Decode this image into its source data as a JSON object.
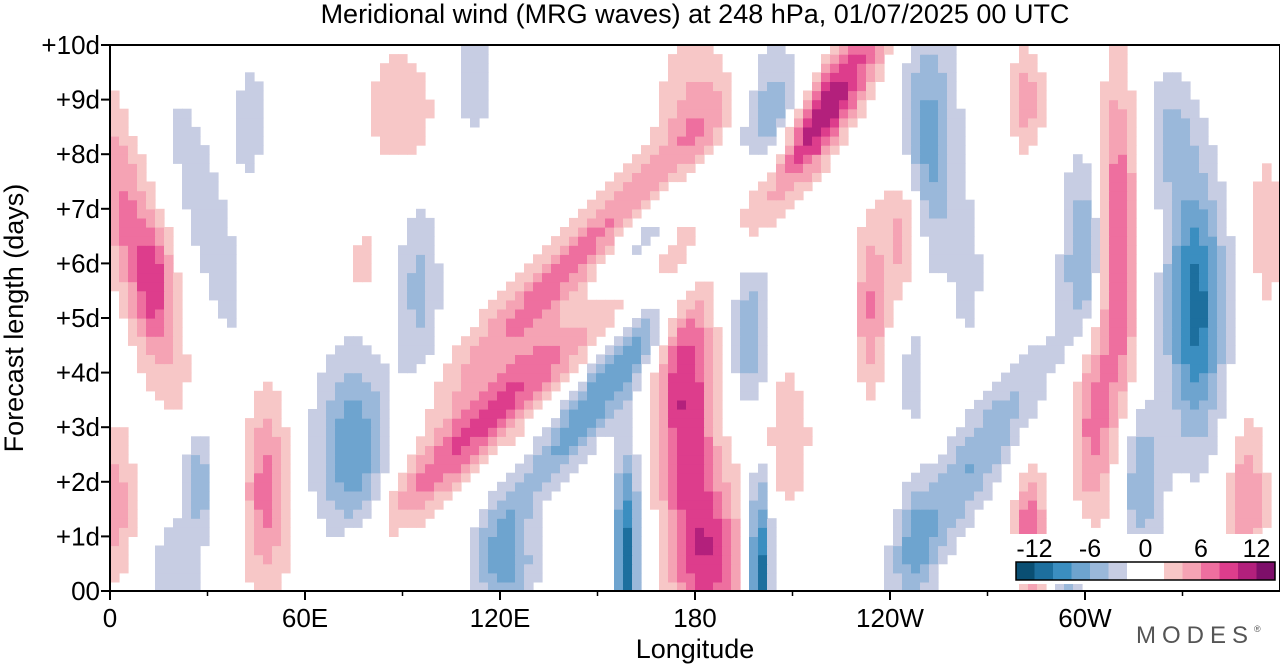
{
  "chart_data": {
    "type": "heatmap",
    "title": "Meridional wind (MRG waves) at  248 hPa,  01/07/2025  00 UTC",
    "xlabel": "Longitude",
    "ylabel": "Forecast length (days)",
    "x_ticks": [
      "0",
      "60E",
      "120E",
      "180",
      "120W",
      "60W"
    ],
    "x_tick_values": [
      0,
      60,
      120,
      180,
      240,
      300
    ],
    "x_minor_ticks": [
      30,
      90,
      150,
      210,
      270,
      330
    ],
    "xlim": [
      0,
      360
    ],
    "y_ticks": [
      "00",
      "+1d",
      "+2d",
      "+3d",
      "+4d",
      "+5d",
      "+6d",
      "+7d",
      "+8d",
      "+9d",
      "+10d"
    ],
    "y_tick_values": [
      0,
      1,
      2,
      3,
      4,
      5,
      6,
      7,
      8,
      9,
      10
    ],
    "ylim": [
      0,
      10
    ],
    "colorbar": {
      "labels": [
        "-12",
        "-6",
        "0",
        "6",
        "12"
      ],
      "label_values": [
        -12,
        -6,
        0,
        6,
        12
      ],
      "levels": [
        -14,
        -12,
        -10,
        -8,
        -6,
        -4,
        -2,
        2,
        4,
        6,
        8,
        10,
        12,
        14
      ],
      "colors": [
        "#0a4f73",
        "#1d6f9e",
        "#3b8ec0",
        "#6ea4cf",
        "#9ab8da",
        "#c7cde3",
        "#ffffff",
        "#f7c7c7",
        "#f5a3b4",
        "#ee6f9f",
        "#dd3d8c",
        "#b3207c",
        "#7e0f6a"
      ]
    },
    "blobs": [
      {
        "lon": 8,
        "day": 6.3,
        "rlon": 9,
        "rday": 2.8,
        "amp": 7,
        "tilt": -4
      },
      {
        "lon": 14,
        "day": 5.7,
        "rlon": 5,
        "rday": 0.9,
        "amp": 4
      },
      {
        "lon": 2,
        "day": 1.6,
        "rlon": 6,
        "rday": 1.5,
        "amp": 5
      },
      {
        "lon": 30,
        "day": 6.8,
        "rlon": 8,
        "rday": 2.8,
        "amp": -3.5,
        "tilt": -4
      },
      {
        "lon": 27,
        "day": 2.0,
        "rlon": 5,
        "rday": 1.0,
        "amp": -6
      },
      {
        "lon": 20,
        "day": 0.3,
        "rlon": 8,
        "rday": 1.0,
        "amp": -4
      },
      {
        "lon": 48,
        "day": 1.9,
        "rlon": 7,
        "rday": 1.9,
        "amp": 7
      },
      {
        "lon": 43,
        "day": 8.6,
        "rlon": 6,
        "rday": 1.5,
        "amp": -3
      },
      {
        "lon": 75,
        "day": 2.5,
        "rlon": 12,
        "rday": 1.8,
        "amp": -8
      },
      {
        "lon": 95,
        "day": 5.5,
        "rlon": 7,
        "rday": 1.8,
        "amp": -4.5
      },
      {
        "lon": 90,
        "day": 8.8,
        "rlon": 12,
        "rday": 1.2,
        "amp": 4
      },
      {
        "lon": 78,
        "day": 6.0,
        "rlon": 6,
        "rday": 0.7,
        "amp": 3
      },
      {
        "lon": 112,
        "day": 9.3,
        "rlon": 9,
        "rday": 1.3,
        "amp": -3
      },
      {
        "lon": 120,
        "day": 3.4,
        "rlon": 12,
        "rday": 2.6,
        "amp": 9,
        "tilt": 16
      },
      {
        "lon": 142,
        "day": 6.0,
        "rlon": 12,
        "rday": 2.6,
        "amp": 7,
        "tilt": 16
      },
      {
        "lon": 122,
        "day": 0.5,
        "rlon": 9,
        "rday": 1.1,
        "amp": -7
      },
      {
        "lon": 152,
        "day": 3.7,
        "rlon": 9,
        "rday": 2.2,
        "amp": -8,
        "tilt": 12
      },
      {
        "lon": 163,
        "day": 6.4,
        "rlon": 9,
        "rday": 1.8,
        "amp": -6,
        "tilt": 14
      },
      {
        "lon": 159,
        "day": 0.6,
        "rlon": 4,
        "rday": 2.0,
        "amp": -11
      },
      {
        "lon": 177,
        "day": 3.6,
        "rlon": 9,
        "rday": 2.3,
        "amp": 10
      },
      {
        "lon": 184,
        "day": 0.6,
        "rlon": 11,
        "rday": 1.6,
        "amp": 9
      },
      {
        "lon": 180,
        "day": 8.9,
        "rlon": 12,
        "rday": 1.5,
        "amp": 4
      },
      {
        "lon": 204,
        "day": 8.6,
        "rlon": 9,
        "rday": 1.6,
        "amp": -6
      },
      {
        "lon": 218,
        "day": 8.6,
        "rlon": 9,
        "rday": 1.9,
        "amp": 12,
        "tilt": 10
      },
      {
        "lon": 200,
        "day": 0.4,
        "rlon": 3.5,
        "rday": 1.8,
        "amp": -12
      },
      {
        "lon": 197,
        "day": 4.7,
        "rlon": 6,
        "rday": 1.3,
        "amp": -6
      },
      {
        "lon": 208,
        "day": 2.8,
        "rlon": 8,
        "rday": 1.4,
        "amp": 4
      },
      {
        "lon": 234,
        "day": 5.2,
        "rlon": 5,
        "rday": 1.6,
        "amp": 6
      },
      {
        "lon": 244,
        "day": 6.6,
        "rlon": 6,
        "rday": 1.3,
        "amp": 6
      },
      {
        "lon": 252,
        "day": 8.2,
        "rlon": 9,
        "rday": 2.2,
        "amp": -7
      },
      {
        "lon": 264,
        "day": 5.8,
        "rlon": 5,
        "rday": 1.4,
        "amp": -3
      },
      {
        "lon": 247,
        "day": 3.9,
        "rlon": 5,
        "rday": 1.2,
        "amp": -3
      },
      {
        "lon": 264,
        "day": 2.2,
        "rlon": 11,
        "rday": 2.2,
        "amp": -6,
        "tilt": 10
      },
      {
        "lon": 248,
        "day": 0.8,
        "rlon": 6,
        "rday": 1.2,
        "amp": -4
      },
      {
        "lon": 283,
        "day": 1.0,
        "rlon": 5,
        "rday": 1.2,
        "amp": 8
      },
      {
        "lon": 282,
        "day": 9.0,
        "rlon": 6,
        "rday": 1.0,
        "amp": 5
      },
      {
        "lon": 300,
        "day": 6.0,
        "rlon": 7,
        "rday": 1.9,
        "amp": -7
      },
      {
        "lon": 310,
        "day": 6.2,
        "rlon": 6,
        "rday": 3.2,
        "amp": 9
      },
      {
        "lon": 302,
        "day": 3.3,
        "rlon": 6,
        "rday": 2.0,
        "amp": 7
      },
      {
        "lon": 334,
        "day": 5.2,
        "rlon": 9,
        "rday": 2.4,
        "amp": -11
      },
      {
        "lon": 317,
        "day": 2.0,
        "rlon": 7,
        "rday": 1.5,
        "amp": -6
      },
      {
        "lon": 296,
        "day": 0.3,
        "rlon": 5,
        "rday": 0.8,
        "amp": -5
      },
      {
        "lon": 350,
        "day": 1.7,
        "rlon": 6,
        "rday": 1.4,
        "amp": 6
      },
      {
        "lon": 326,
        "day": 8.4,
        "rlon": 8,
        "rday": 1.2,
        "amp": -4
      },
      {
        "lon": 356,
        "day": 6.6,
        "rlon": 5,
        "rday": 1.5,
        "amp": 4
      }
    ]
  },
  "brand": {
    "name": "MODES",
    "mark": "®"
  }
}
